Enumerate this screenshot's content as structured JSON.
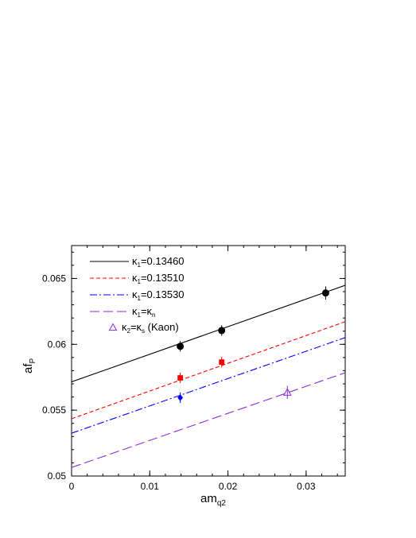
{
  "chart_data": {
    "type": "scatter",
    "xlabel": {
      "main": "am",
      "sub": "q2"
    },
    "ylabel": {
      "main": "af",
      "sub": "P"
    },
    "xlim": [
      0,
      0.035
    ],
    "ylim": [
      0.05,
      0.0675
    ],
    "x_ticks": [
      {
        "value": 0,
        "label": "0"
      },
      {
        "value": 0.01,
        "label": "0.01"
      },
      {
        "value": 0.02,
        "label": "0.02"
      },
      {
        "value": 0.03,
        "label": "0.03"
      }
    ],
    "y_ticks": [
      {
        "value": 0.05,
        "label": "0.05"
      },
      {
        "value": 0.055,
        "label": "0.055"
      },
      {
        "value": 0.06,
        "label": "0.06"
      },
      {
        "value": 0.065,
        "label": "0.065"
      }
    ],
    "grid": false,
    "legend_position": "top-left",
    "series": [
      {
        "name": "κ1=0.13460",
        "legend": {
          "a": "κ",
          "a_sub": "1",
          "rest": "=0.13460"
        },
        "color": "#000000",
        "dash": "solid",
        "marker": "circle",
        "fit": {
          "intercept": 0.05715,
          "slope": 0.2095
        },
        "points": [
          {
            "x": 0.0139,
            "y": 0.05985,
            "err": 0.0004
          },
          {
            "x": 0.0192,
            "y": 0.06105,
            "err": 0.0004
          },
          {
            "x": 0.0325,
            "y": 0.0639,
            "err": 0.0005
          }
        ]
      },
      {
        "name": "κ1=0.13510",
        "legend": {
          "a": "κ",
          "a_sub": "1",
          "rest": "=0.13510"
        },
        "color": "#ff0000",
        "dash": "dashed",
        "marker": "square",
        "fit": {
          "intercept": 0.05435,
          "slope": 0.2105
        },
        "points": [
          {
            "x": 0.0139,
            "y": 0.05745,
            "err": 0.0004
          },
          {
            "x": 0.0192,
            "y": 0.05865,
            "err": 0.0004
          }
        ]
      },
      {
        "name": "κ1=0.13530",
        "legend": {
          "a": "κ",
          "a_sub": "1",
          "rest": "=0.13530"
        },
        "color": "#0000ff",
        "dash": "dashdot",
        "marker": "diamond",
        "fit": {
          "intercept": 0.05325,
          "slope": 0.2075
        },
        "points": [
          {
            "x": 0.0139,
            "y": 0.05595,
            "err": 0.0004
          }
        ]
      },
      {
        "name": "κ1=κn",
        "legend": {
          "a": "κ",
          "a_sub": "1",
          "rest": "=",
          "b": "κ",
          "b_sub": "n"
        },
        "color": "#8a2be2",
        "dash": "longdash",
        "marker": "none",
        "fit": {
          "intercept": 0.05065,
          "slope": 0.2055
        },
        "points": []
      },
      {
        "name": "κ2=κs (Kaon)",
        "legend": {
          "a": "κ",
          "a_sub": "2",
          "rest": "=",
          "b": "κ",
          "b_sub": "s",
          "tail": " (Kaon)"
        },
        "color": "#8a2be2",
        "dash": "none",
        "marker": "triangle-open",
        "fit": null,
        "points": [
          {
            "x": 0.0276,
            "y": 0.05635,
            "err": 0.0005
          }
        ]
      }
    ]
  }
}
